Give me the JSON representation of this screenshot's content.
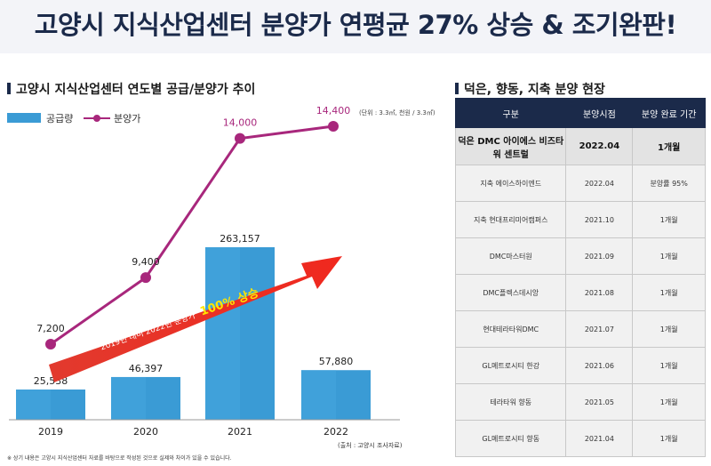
{
  "page_title": "고양시 지식산업센터 분양가 연평균 27% 상승 & 조기완판!",
  "left": {
    "title": "고양시 지식산업센터 연도별 공급/분양가 추이",
    "legend": {
      "supply": "공급량",
      "price": "분양가"
    },
    "unit_note": "(단위 : 3.3㎡, 천원 / 3.3㎡)",
    "source": "(출처 : 고양시 조사자료)",
    "footnote": "※ 상기 내용은 고양시 지식산업센터 자료를 바탕으로 작성된 것으로 실제와 차이가 있을 수 있습니다."
  },
  "chart_data": {
    "type": "bar",
    "title": "고양시 지식산업센터 연도별 공급/분양가 추이",
    "categories": [
      "2019",
      "2020",
      "2021",
      "2022"
    ],
    "series": [
      {
        "name": "공급량",
        "kind": "bar",
        "color": "#3a9bd5",
        "values": [
          25538,
          46397,
          263157,
          57880
        ],
        "labels": [
          "25,538",
          "46,397",
          "263,157",
          "57,880"
        ]
      },
      {
        "name": "분양가",
        "kind": "line",
        "color": "#a8277c",
        "values": [
          7200,
          9400,
          14000,
          14400
        ],
        "labels": [
          "7,200",
          "9,400",
          "14,000",
          "14,400"
        ]
      }
    ],
    "annotation": {
      "text": "2019년 대비 2022년 분양가",
      "highlight": "100% 상승"
    },
    "xlabel": "",
    "ylabel": ""
  },
  "right": {
    "title": "덕은, 향동, 지축 분양 현장",
    "columns": [
      "구분",
      "분양시점",
      "분양 완료 기간"
    ],
    "rows": [
      {
        "name": "덕은 DMC 아이에스 비즈타워 센트럴",
        "date": "2022.04",
        "period": "1개월",
        "highlight": true
      },
      {
        "name": "지축 에이스하이엔드",
        "date": "2022.04",
        "period": "분양률 95%"
      },
      {
        "name": "지축 현대프리미어캠퍼스",
        "date": "2021.10",
        "period": "1개월"
      },
      {
        "name": "DMC마스터원",
        "date": "2021.09",
        "period": "1개월"
      },
      {
        "name": "DMC플렉스데시앙",
        "date": "2021.08",
        "period": "1개월"
      },
      {
        "name": "현대테라타워DMC",
        "date": "2021.07",
        "period": "1개월"
      },
      {
        "name": "GL메트로시티 한강",
        "date": "2021.06",
        "period": "1개월"
      },
      {
        "name": "테라타워 향동",
        "date": "2021.05",
        "period": "1개월"
      },
      {
        "name": "GL메트로시티 향동",
        "date": "2021.04",
        "period": "1개월"
      }
    ]
  }
}
